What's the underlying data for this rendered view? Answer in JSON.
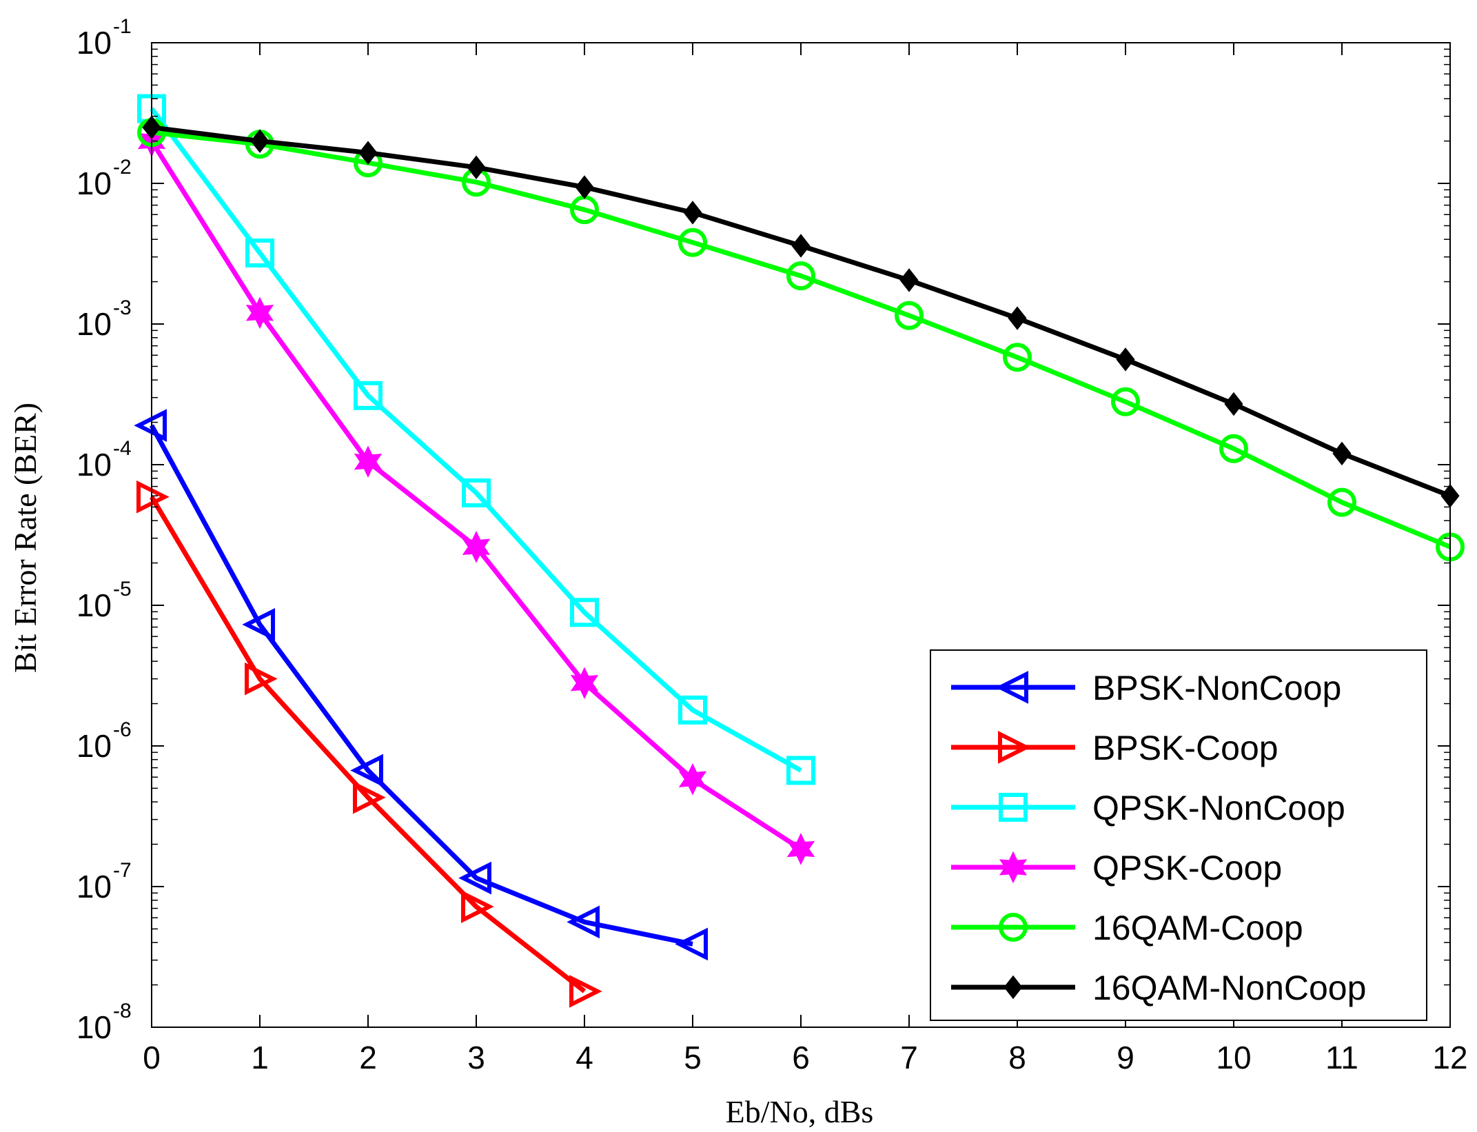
{
  "chart_data": {
    "type": "line",
    "title": "",
    "xlabel": "Eb/No, dBs",
    "ylabel": "Bit Error Rate (BER)",
    "xlim": [
      0,
      12
    ],
    "ylim": [
      1e-08,
      0.1
    ],
    "yscale": "log",
    "grid": false,
    "legend_position": "bottom-right",
    "x_ticks": [
      "0",
      "1",
      "2",
      "3",
      "4",
      "5",
      "6",
      "7",
      "8",
      "9",
      "10",
      "11",
      "12"
    ],
    "y_ticks": [
      {
        "base": "10",
        "exp": "-1",
        "value": 0.1
      },
      {
        "base": "10",
        "exp": "-2",
        "value": 0.01
      },
      {
        "base": "10",
        "exp": "-3",
        "value": 0.001
      },
      {
        "base": "10",
        "exp": "-4",
        "value": 0.0001
      },
      {
        "base": "10",
        "exp": "-5",
        "value": 1e-05
      },
      {
        "base": "10",
        "exp": "-6",
        "value": 1e-06
      },
      {
        "base": "10",
        "exp": "-7",
        "value": 1e-07
      },
      {
        "base": "10",
        "exp": "-8",
        "value": 1e-08
      }
    ],
    "series": [
      {
        "name": "BPSK-NonCoop",
        "color": "#0000ff",
        "marker": "triangle-left",
        "x": [
          0,
          1,
          2,
          3,
          4,
          5
        ],
        "values": [
          0.00019,
          7.3e-06,
          6.7e-07,
          1.15e-07,
          5.6e-08,
          3.9e-08
        ]
      },
      {
        "name": "BPSK-Coop",
        "color": "#ff0000",
        "marker": "triangle-right",
        "x": [
          0,
          1,
          2,
          3,
          4
        ],
        "values": [
          5.9e-05,
          3e-06,
          4.3e-07,
          7.2e-08,
          1.8e-08
        ]
      },
      {
        "name": "QPSK-NonCoop",
        "color": "#00ffff",
        "marker": "square",
        "x": [
          0,
          1,
          2,
          3,
          4,
          5,
          6
        ],
        "values": [
          0.034,
          0.0032,
          0.00031,
          6.3e-05,
          8.9e-06,
          1.8e-06,
          6.7e-07
        ]
      },
      {
        "name": "QPSK-Coop",
        "color": "#ff00ff",
        "marker": "hexagram",
        "x": [
          0,
          1,
          2,
          3,
          4,
          5,
          6
        ],
        "values": [
          0.02,
          0.0012,
          0.000105,
          2.6e-05,
          2.8e-06,
          5.8e-07,
          1.85e-07
        ]
      },
      {
        "name": "16QAM-Coop",
        "color": "#00ff00",
        "marker": "circle",
        "x": [
          0,
          1,
          2,
          3,
          4,
          5,
          6,
          7,
          8,
          9,
          10,
          11,
          12
        ],
        "values": [
          0.023,
          0.019,
          0.014,
          0.0102,
          0.0065,
          0.0038,
          0.0022,
          0.00115,
          0.00058,
          0.00028,
          0.00013,
          5.4e-05,
          2.6e-05
        ]
      },
      {
        "name": "16QAM-NonCoop",
        "color": "#000000",
        "marker": "filled-diamond",
        "x": [
          0,
          1,
          2,
          3,
          4,
          5,
          6,
          7,
          8,
          9,
          10,
          11,
          12
        ],
        "values": [
          0.025,
          0.02,
          0.0165,
          0.013,
          0.0094,
          0.0062,
          0.0036,
          0.00205,
          0.0011,
          0.00056,
          0.00027,
          0.00012,
          6e-05
        ]
      }
    ]
  }
}
